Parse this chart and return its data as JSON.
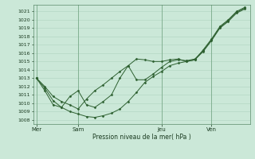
{
  "xlabel": "Pression niveau de la mer( hPa )",
  "background_color": "#cbe8d8",
  "plot_bg_color": "#cbe8d8",
  "grid_color": "#b0d4c0",
  "line_color": "#2d6030",
  "marker_color": "#2d6030",
  "ylim": [
    1007.5,
    1021.8
  ],
  "yticks": [
    1008,
    1009,
    1010,
    1011,
    1012,
    1013,
    1014,
    1015,
    1016,
    1017,
    1018,
    1019,
    1020,
    1021
  ],
  "day_labels": [
    "Mer",
    "Sam",
    "Jeu",
    "Ven"
  ],
  "day_positions": [
    0.0,
    2.5,
    7.5,
    10.5
  ],
  "xlim": [
    -0.2,
    12.8
  ],
  "series1_x": [
    0,
    0.5,
    1.0,
    1.5,
    2.0,
    2.5,
    3.0,
    3.5,
    4.0,
    4.5,
    5.0,
    5.5,
    6.0,
    6.5,
    7.0,
    7.5,
    8.0,
    8.5,
    9.0,
    9.5,
    10.0,
    10.5,
    11.0,
    11.5,
    12.0,
    12.5
  ],
  "series1_y": [
    1013,
    1011.8,
    1010.3,
    1009.5,
    1009.0,
    1008.7,
    1008.4,
    1008.3,
    1008.5,
    1008.8,
    1009.3,
    1010.2,
    1011.3,
    1012.5,
    1013.2,
    1013.8,
    1014.5,
    1014.8,
    1015.0,
    1015.2,
    1016.2,
    1017.5,
    1019.0,
    1019.8,
    1020.8,
    1021.3
  ],
  "series2_x": [
    0,
    0.5,
    1.0,
    1.5,
    2.0,
    2.5,
    3.0,
    3.5,
    4.0,
    4.5,
    5.0,
    5.5,
    6.0,
    6.5,
    7.0,
    7.5,
    8.0,
    8.5,
    9.0,
    9.5,
    10.0,
    10.5,
    11.0,
    11.5,
    12.0,
    12.5
  ],
  "series2_y": [
    1013,
    1012.0,
    1010.8,
    1010.2,
    1009.8,
    1009.3,
    1010.5,
    1011.5,
    1012.2,
    1013.0,
    1013.8,
    1014.5,
    1012.8,
    1012.8,
    1013.5,
    1014.3,
    1015.0,
    1015.2,
    1015.1,
    1015.3,
    1016.3,
    1017.6,
    1019.1,
    1019.9,
    1020.9,
    1021.4
  ],
  "series3_x": [
    0,
    0.5,
    1.0,
    1.5,
    2.0,
    2.5,
    3.0,
    3.5,
    4.0,
    4.5,
    5.0,
    5.5,
    6.0,
    6.5,
    7.0,
    7.5,
    8.0,
    8.5,
    9.0,
    9.5,
    10.0,
    10.5,
    11.0,
    11.5,
    12.0,
    12.5
  ],
  "series3_y": [
    1013,
    1011.5,
    1009.8,
    1009.5,
    1010.8,
    1011.5,
    1009.8,
    1009.5,
    1010.2,
    1011.0,
    1013.0,
    1014.5,
    1015.3,
    1015.2,
    1015.0,
    1015.0,
    1015.2,
    1015.3,
    1015.0,
    1015.2,
    1016.4,
    1017.7,
    1019.2,
    1020.0,
    1021.0,
    1021.5
  ]
}
